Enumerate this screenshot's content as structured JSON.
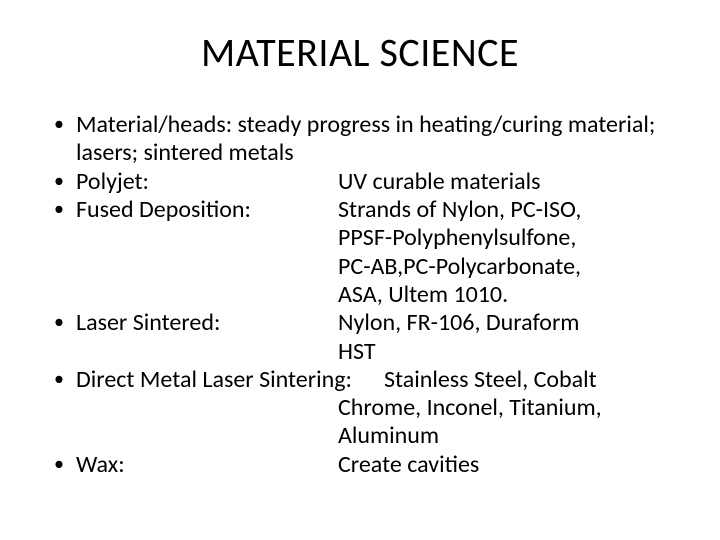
{
  "title": "MATERIAL SCIENCE",
  "bullet_char": "•",
  "colors": {
    "text": "#000000",
    "background": "#ffffff"
  },
  "typography": {
    "title_fontsize": 40,
    "body_fontsize": 24,
    "font_family": "Calibri"
  },
  "items": [
    {
      "type": "full",
      "text": "Material/heads: steady progress in heating/curing material; lasers; sintered metals"
    },
    {
      "type": "pair",
      "label": "Polyjet:",
      "value": "UV curable materials"
    },
    {
      "type": "pair_multiline",
      "label": "Fused Deposition:",
      "value_lines": [
        "Strands of Nylon, PC-ISO,",
        "PPSF-Polyphenylsulfone,",
        "PC-AB,PC-Polycarbonate,",
        "ASA, Ultem 1010."
      ]
    },
    {
      "type": "pair_multiline",
      "label": "Laser Sintered:",
      "value_lines": [
        "Nylon, FR-106, Duraform",
        "HST"
      ]
    },
    {
      "type": "long_label",
      "label": "Direct Metal Laser Sintering:",
      "value_first": "Stainless Steel, Cobalt",
      "value_rest": [
        "Chrome, Inconel, Titanium,",
        "Aluminum"
      ]
    },
    {
      "type": "pair",
      "label": "Wax:",
      "value": "Create cavities"
    }
  ]
}
